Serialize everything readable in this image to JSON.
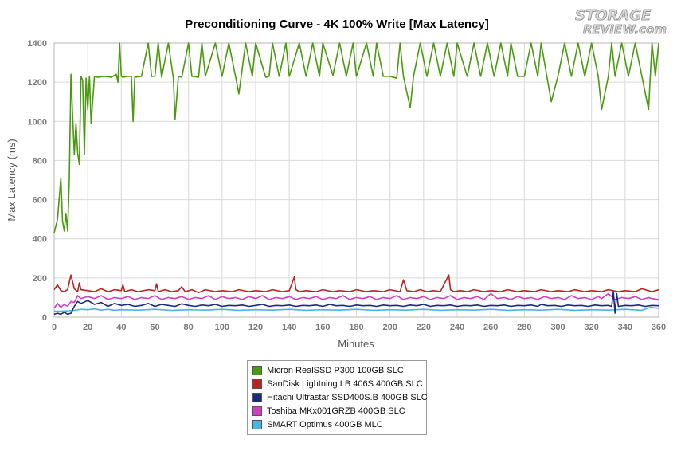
{
  "logo": {
    "line1": "STORAGE",
    "line2": "REVIEW.com"
  },
  "chart_data": {
    "type": "line",
    "title": "Preconditioning Curve - 4K 100% Write [Max Latency]",
    "xlabel": "Minutes",
    "ylabel": "Max Latency (ms)",
    "xlim": [
      0,
      360
    ],
    "ylim": [
      0,
      1400
    ],
    "xticks": [
      0,
      20,
      40,
      60,
      80,
      100,
      120,
      140,
      160,
      180,
      200,
      220,
      240,
      260,
      280,
      300,
      320,
      340,
      360
    ],
    "yticks": [
      0,
      200,
      400,
      600,
      800,
      1000,
      1200,
      1400
    ],
    "grid": true,
    "legend_position": "bottom",
    "series": [
      {
        "name": "Micron RealSSD P300 100GB SLC",
        "color": "#4a9a0e",
        "x": [
          0,
          2,
          4,
          5,
          6,
          7,
          8,
          9,
          10,
          11,
          12,
          13,
          14,
          15,
          16,
          17,
          18,
          19,
          20,
          21,
          22,
          24,
          26,
          30,
          34,
          37,
          38,
          39,
          40,
          41,
          44,
          46,
          47,
          48,
          52,
          56,
          58,
          60,
          62,
          64,
          68,
          71,
          72,
          74,
          76,
          80,
          82,
          86,
          88,
          90,
          96,
          100,
          104,
          108,
          110,
          114,
          118,
          120,
          126,
          128,
          130,
          134,
          138,
          140,
          146,
          150,
          154,
          158,
          160,
          166,
          170,
          174,
          178,
          180,
          186,
          190,
          192,
          196,
          200,
          204,
          206,
          208,
          212,
          214,
          218,
          222,
          226,
          230,
          234,
          238,
          240,
          246,
          250,
          254,
          258,
          262,
          266,
          270,
          272,
          276,
          280,
          284,
          288,
          290,
          296,
          300,
          304,
          308,
          312,
          316,
          320,
          324,
          326,
          330,
          332,
          334,
          338,
          342,
          346,
          350,
          354,
          356,
          358,
          360
        ],
        "y": [
          430,
          500,
          710,
          490,
          440,
          530,
          440,
          700,
          1240,
          1030,
          830,
          990,
          840,
          780,
          1230,
          1210,
          830,
          1220,
          1060,
          1230,
          990,
          1230,
          1225,
          1230,
          1225,
          1240,
          1200,
          1400,
          1230,
          1225,
          1230,
          1230,
          1000,
          1225,
          1230,
          1400,
          1230,
          1230,
          1400,
          1225,
          1400,
          1220,
          1010,
          1230,
          1225,
          1400,
          1230,
          1225,
          1400,
          1230,
          1400,
          1230,
          1400,
          1230,
          1140,
          1400,
          1230,
          1400,
          1225,
          1230,
          1400,
          1230,
          1400,
          1230,
          1400,
          1230,
          1400,
          1230,
          1400,
          1235,
          1400,
          1230,
          1400,
          1230,
          1400,
          1230,
          1400,
          1230,
          1230,
          1220,
          1400,
          1230,
          1070,
          1230,
          1400,
          1230,
          1400,
          1230,
          1400,
          1230,
          1400,
          1230,
          1400,
          1230,
          1400,
          1230,
          1400,
          1230,
          1400,
          1230,
          1230,
          1400,
          1230,
          1400,
          1100,
          1230,
          1400,
          1230,
          1400,
          1230,
          1400,
          1230,
          1060,
          1230,
          1400,
          1230,
          1400,
          1230,
          1400,
          1230,
          1060,
          1400,
          1230,
          1400
        ]
      },
      {
        "name": "SanDisk Lightning LB 406S 400GB SLC",
        "color": "#c0201e",
        "x": [
          0,
          2,
          4,
          6,
          8,
          10,
          12,
          14,
          15,
          16,
          20,
          24,
          28,
          32,
          36,
          40,
          41,
          42,
          46,
          50,
          56,
          60,
          61,
          62,
          66,
          70,
          74,
          76,
          78,
          82,
          86,
          90,
          96,
          100,
          106,
          110,
          116,
          120,
          126,
          130,
          136,
          140,
          143,
          144,
          146,
          150,
          156,
          160,
          166,
          170,
          176,
          180,
          186,
          190,
          196,
          200,
          206,
          208,
          210,
          214,
          218,
          222,
          226,
          230,
          235,
          236,
          238,
          242,
          246,
          250,
          256,
          260,
          266,
          270,
          276,
          280,
          286,
          290,
          296,
          300,
          306,
          310,
          316,
          320,
          326,
          330,
          336,
          340,
          346,
          350,
          356,
          360
        ],
        "y": [
          140,
          165,
          135,
          130,
          140,
          215,
          145,
          130,
          175,
          140,
          135,
          130,
          145,
          130,
          140,
          135,
          165,
          130,
          140,
          130,
          140,
          135,
          170,
          130,
          140,
          130,
          135,
          155,
          130,
          140,
          125,
          140,
          130,
          135,
          130,
          140,
          130,
          135,
          130,
          140,
          130,
          135,
          205,
          140,
          130,
          135,
          130,
          140,
          130,
          135,
          130,
          140,
          130,
          135,
          130,
          140,
          130,
          190,
          135,
          130,
          140,
          130,
          135,
          130,
          215,
          140,
          130,
          135,
          130,
          140,
          130,
          135,
          130,
          140,
          130,
          135,
          130,
          140,
          130,
          135,
          130,
          140,
          130,
          135,
          130,
          140,
          130,
          135,
          130,
          145,
          130,
          140
        ]
      },
      {
        "name": "Hitachi Ultrastar SSD400S.B 400GB SLC",
        "color": "#1a2a80",
        "x": [
          0,
          2,
          4,
          6,
          8,
          10,
          12,
          14,
          16,
          20,
          24,
          28,
          32,
          36,
          40,
          44,
          48,
          52,
          56,
          60,
          64,
          68,
          72,
          76,
          80,
          84,
          88,
          92,
          96,
          100,
          104,
          108,
          112,
          116,
          120,
          124,
          128,
          132,
          136,
          140,
          144,
          148,
          152,
          156,
          160,
          164,
          168,
          172,
          176,
          180,
          184,
          188,
          192,
          196,
          200,
          204,
          208,
          212,
          216,
          220,
          224,
          228,
          232,
          236,
          240,
          244,
          248,
          252,
          256,
          260,
          264,
          268,
          272,
          276,
          280,
          284,
          288,
          290,
          294,
          298,
          302,
          306,
          310,
          314,
          318,
          322,
          326,
          330,
          332,
          333,
          334,
          335,
          336,
          340,
          344,
          348,
          352,
          356,
          360
        ],
        "y": [
          15,
          20,
          15,
          25,
          15,
          20,
          55,
          80,
          70,
          85,
          65,
          75,
          55,
          70,
          60,
          65,
          55,
          60,
          70,
          55,
          65,
          60,
          55,
          68,
          60,
          55,
          62,
          58,
          65,
          55,
          60,
          58,
          62,
          55,
          60,
          65,
          55,
          60,
          58,
          62,
          55,
          60,
          58,
          62,
          55,
          65,
          58,
          60,
          55,
          62,
          58,
          60,
          55,
          62,
          58,
          60,
          55,
          62,
          58,
          65,
          55,
          60,
          58,
          62,
          55,
          60,
          58,
          62,
          55,
          60,
          58,
          62,
          55,
          60,
          58,
          62,
          55,
          65,
          58,
          60,
          55,
          62,
          58,
          60,
          55,
          62,
          58,
          60,
          55,
          130,
          20,
          120,
          55,
          60,
          58,
          62,
          55,
          60,
          58
        ]
      },
      {
        "name": "Toshiba MKx001GRZB 400GB SLC",
        "color": "#d43fc2",
        "x": [
          0,
          2,
          4,
          6,
          8,
          10,
          12,
          14,
          16,
          18,
          20,
          24,
          28,
          32,
          36,
          40,
          44,
          48,
          52,
          56,
          60,
          64,
          68,
          72,
          76,
          80,
          84,
          88,
          92,
          96,
          100,
          104,
          108,
          112,
          116,
          120,
          124,
          128,
          132,
          136,
          140,
          144,
          148,
          152,
          156,
          160,
          164,
          168,
          172,
          176,
          180,
          184,
          188,
          192,
          196,
          200,
          204,
          208,
          212,
          216,
          220,
          224,
          228,
          232,
          236,
          240,
          244,
          248,
          252,
          256,
          260,
          264,
          268,
          272,
          276,
          280,
          284,
          288,
          292,
          296,
          300,
          304,
          308,
          312,
          316,
          320,
          324,
          326,
          330,
          334,
          338,
          342,
          346,
          350,
          354,
          356,
          360
        ],
        "y": [
          45,
          70,
          50,
          65,
          55,
          80,
          75,
          110,
          95,
          100,
          105,
          95,
          110,
          90,
          100,
          95,
          105,
          90,
          100,
          95,
          110,
          90,
          100,
          95,
          105,
          90,
          100,
          95,
          110,
          90,
          105,
          95,
          100,
          90,
          105,
          95,
          110,
          90,
          100,
          95,
          105,
          90,
          100,
          95,
          105,
          90,
          100,
          95,
          110,
          90,
          100,
          95,
          105,
          90,
          100,
          95,
          110,
          90,
          100,
          95,
          105,
          90,
          100,
          95,
          110,
          90,
          100,
          95,
          105,
          90,
          120,
          95,
          100,
          90,
          105,
          95,
          100,
          90,
          105,
          95,
          100,
          90,
          110,
          95,
          100,
          90,
          105,
          95,
          120,
          90,
          100,
          95,
          105,
          90,
          100,
          95,
          90
        ]
      },
      {
        "name": "SMART Optimus 400GB MLC",
        "color": "#4ab4e6",
        "x": [
          0,
          4,
          8,
          12,
          16,
          20,
          24,
          28,
          32,
          36,
          40,
          50,
          60,
          70,
          80,
          90,
          100,
          110,
          120,
          130,
          140,
          150,
          160,
          170,
          180,
          190,
          200,
          210,
          220,
          230,
          240,
          250,
          260,
          270,
          280,
          290,
          300,
          310,
          320,
          330,
          340,
          350,
          355,
          360
        ],
        "y": [
          30,
          30,
          32,
          35,
          40,
          38,
          42,
          36,
          40,
          35,
          38,
          36,
          40,
          34,
          38,
          36,
          40,
          35,
          38,
          36,
          40,
          35,
          38,
          36,
          40,
          35,
          38,
          36,
          40,
          35,
          38,
          36,
          40,
          35,
          38,
          36,
          40,
          35,
          38,
          36,
          40,
          35,
          50,
          45
        ]
      }
    ]
  }
}
